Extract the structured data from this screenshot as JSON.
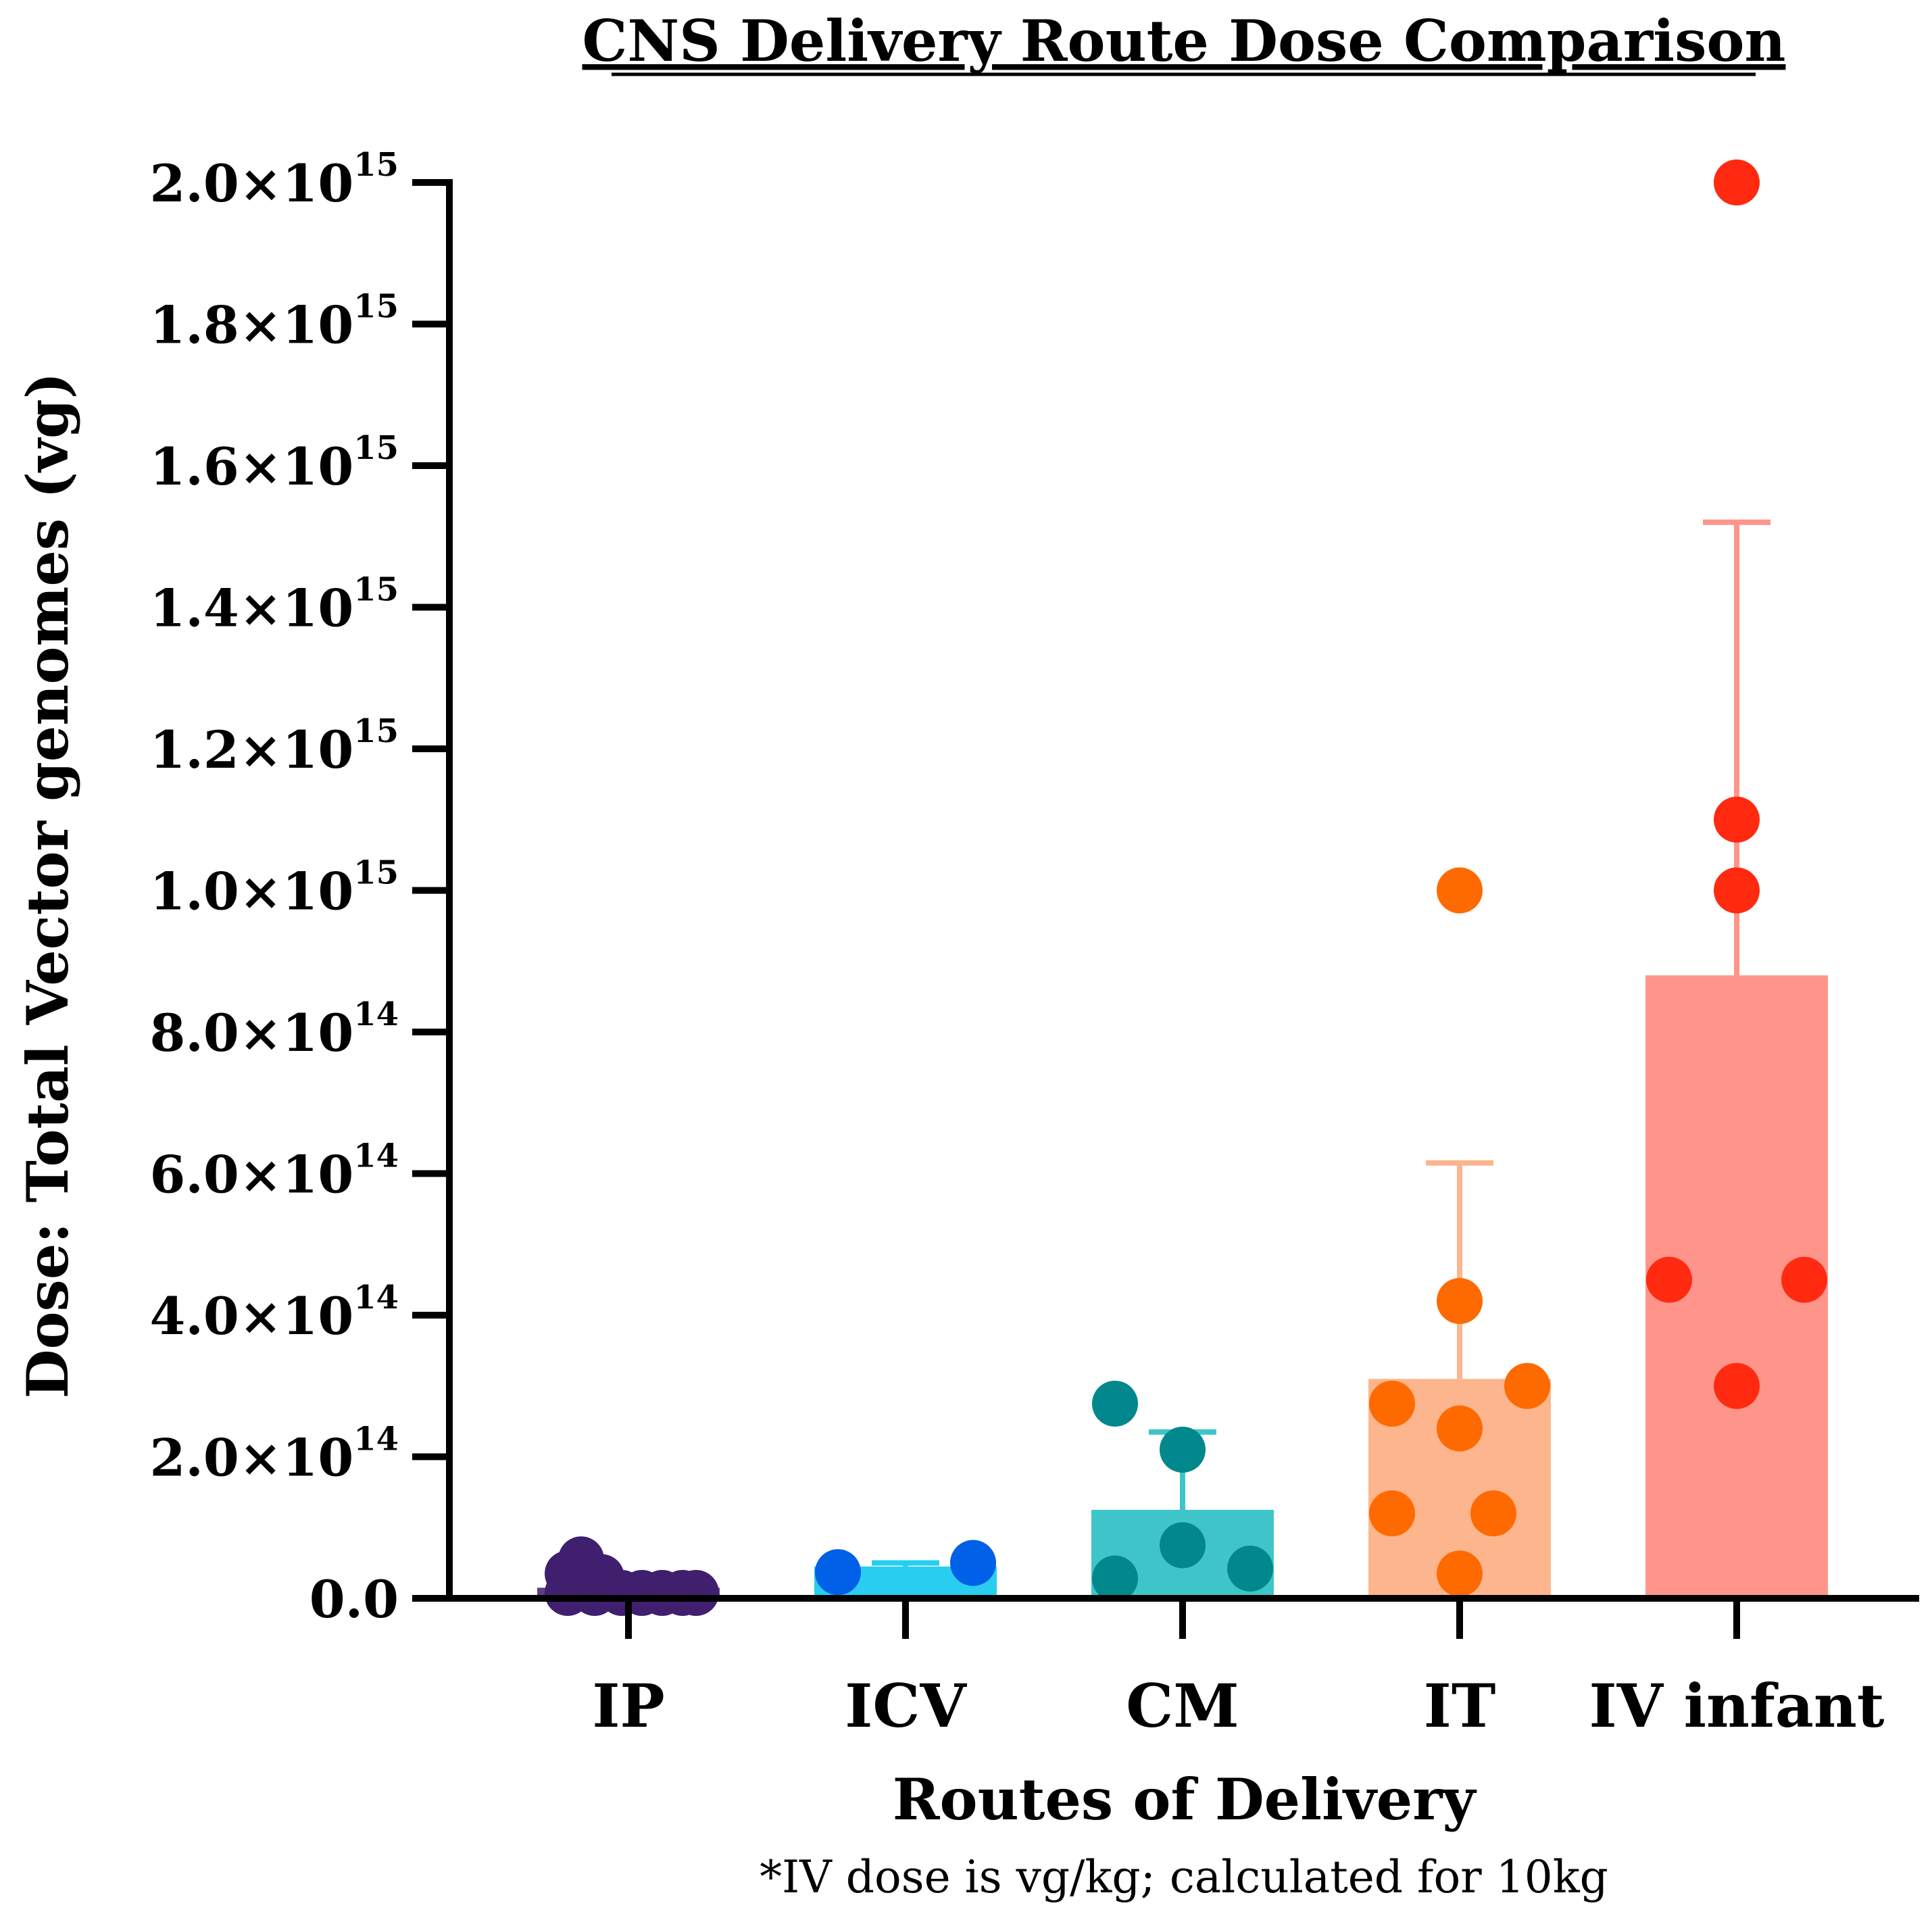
{
  "chart_data": {
    "type": "bar",
    "title": "CNS Delivery Route Dose Comparison",
    "xlabel": "Routes of Delivery",
    "ylabel": "Dose: Total Vector genomes (vg)",
    "footnote": "*IV dose is vg/kg; calculated for 10kg",
    "ylim": [
      0,
      2000000000000000.0
    ],
    "y_ticks": [
      {
        "value": 0,
        "mantissa": "0.0",
        "exponent": ""
      },
      {
        "value": 200000000000000.0,
        "mantissa": "2.0×10",
        "exponent": "14"
      },
      {
        "value": 400000000000000.0,
        "mantissa": "4.0×10",
        "exponent": "14"
      },
      {
        "value": 600000000000000.0,
        "mantissa": "6.0×10",
        "exponent": "14"
      },
      {
        "value": 800000000000000.0,
        "mantissa": "8.0×10",
        "exponent": "14"
      },
      {
        "value": 1000000000000000.0,
        "mantissa": "1.0×10",
        "exponent": "15"
      },
      {
        "value": 1200000000000000.0,
        "mantissa": "1.2×10",
        "exponent": "15"
      },
      {
        "value": 1400000000000000.0,
        "mantissa": "1.4×10",
        "exponent": "15"
      },
      {
        "value": 1600000000000000.0,
        "mantissa": "1.6×10",
        "exponent": "15"
      },
      {
        "value": 1800000000000000.0,
        "mantissa": "1.8×10",
        "exponent": "15"
      },
      {
        "value": 2000000000000000.0,
        "mantissa": "2.0×10",
        "exponent": "15"
      }
    ],
    "categories": [
      "IP",
      "ICV",
      "CM",
      "IT",
      "IV infant"
    ],
    "series": [
      {
        "name": "IP",
        "mean": 15000000000000.0,
        "error_upper": 0,
        "bar_color": "#5b3f86",
        "point_color": "#3f1f6e",
        "points": [
          {
            "offset": -0.35,
            "value": 55000000000000.0
          },
          {
            "offset": -0.45,
            "value": 35000000000000.0
          },
          {
            "offset": -0.2,
            "value": 30000000000000.0
          },
          {
            "offset": -0.45,
            "value": 5000000000000.0
          },
          {
            "offset": -0.25,
            "value": 1000000000000.0
          },
          {
            "offset": -0.05,
            "value": 1000000000000.0
          },
          {
            "offset": 0.1,
            "value": 1000000000000.0
          },
          {
            "offset": 0.25,
            "value": 1000000000000.0
          },
          {
            "offset": 0.4,
            "value": 1000000000000.0
          },
          {
            "offset": 0.5,
            "value": 1000000000000.0
          }
        ]
      },
      {
        "name": "ICV",
        "mean": 45000000000000.0,
        "error_upper": 50000000000000.0,
        "bar_color": "#29cdf0",
        "point_color": "#0060e8",
        "points": [
          {
            "offset": -0.5,
            "value": 37000000000000.0
          },
          {
            "offset": 0.5,
            "value": 50000000000000.0
          }
        ]
      },
      {
        "name": "CM",
        "mean": 125000000000000.0,
        "error_upper": 235000000000000.0,
        "bar_color": "#3fc5c9",
        "point_color": "#00888c",
        "points": [
          {
            "offset": -0.5,
            "value": 275000000000000.0
          },
          {
            "offset": 0.0,
            "value": 210000000000000.0
          },
          {
            "offset": 0.0,
            "value": 75000000000000.0
          },
          {
            "offset": -0.5,
            "value": 28000000000000.0
          },
          {
            "offset": 0.5,
            "value": 42000000000000.0
          }
        ]
      },
      {
        "name": "IT",
        "mean": 310000000000000.0,
        "error_upper": 615000000000000.0,
        "bar_color": "#fdb58d",
        "point_color": "#ff6a00",
        "points": [
          {
            "offset": 0.0,
            "value": 1000000000000000.0
          },
          {
            "offset": 0.0,
            "value": 420000000000000.0
          },
          {
            "offset": -0.5,
            "value": 275000000000000.0
          },
          {
            "offset": 0.5,
            "value": 300000000000000.0
          },
          {
            "offset": 0.0,
            "value": 240000000000000.0
          },
          {
            "offset": -0.5,
            "value": 120000000000000.0
          },
          {
            "offset": 0.25,
            "value": 120000000000000.0
          },
          {
            "offset": 0.0,
            "value": 35000000000000.0
          }
        ]
      },
      {
        "name": "IV infant",
        "mean": 880000000000000.0,
        "error_upper": 1520000000000000.0,
        "bar_color": "#ff958a",
        "point_color": "#ff2a10",
        "points": [
          {
            "offset": 0.0,
            "value": 2000000000000000.0
          },
          {
            "offset": 0.0,
            "value": 1100000000000000.0
          },
          {
            "offset": 0.0,
            "value": 1000000000000000.0
          },
          {
            "offset": -0.5,
            "value": 450000000000000.0
          },
          {
            "offset": 0.5,
            "value": 450000000000000.0
          },
          {
            "offset": 0.0,
            "value": 300000000000000.0
          }
        ]
      }
    ]
  }
}
